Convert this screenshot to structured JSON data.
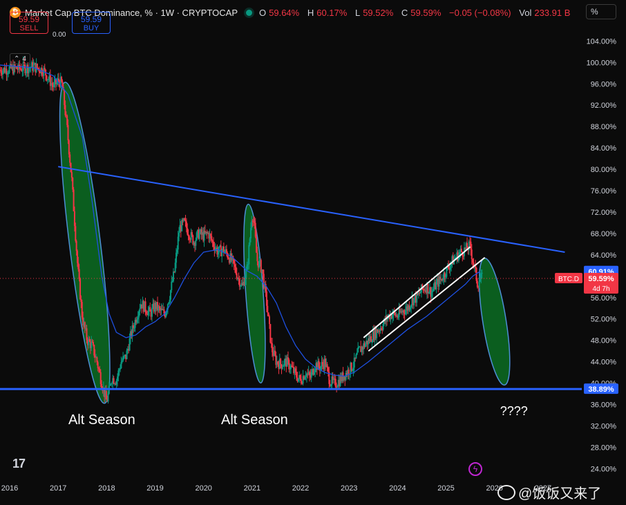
{
  "header": {
    "symbol_icon": "bitcoin-icon",
    "title": "Market Cap BTC Dominance, % · 1W · CRYPTOCAP",
    "ohlc": [
      {
        "k": "O",
        "v": "59.64%"
      },
      {
        "k": "H",
        "v": "60.17%"
      },
      {
        "k": "L",
        "v": "59.52%"
      },
      {
        "k": "C",
        "v": "59.59%"
      },
      {
        "k": "",
        "v": "−0.05 (−0.08%)"
      }
    ],
    "vol_label": "Vol",
    "vol_value": "233.91 B",
    "scale_mode": "%"
  },
  "trade": {
    "sell_price": "59.59",
    "sell_label": "SELL",
    "spread": "0.00",
    "buy_price": "59.59",
    "buy_label": "BUY"
  },
  "layers_count": "4",
  "watermark": "@饭饭又来了",
  "colors": {
    "up": "#089981",
    "down": "#f23645",
    "trendline": "#2962ff",
    "ema": "#1e50e0",
    "ellipse_fill": "#0b5e1f"
  },
  "chart_data": {
    "type": "line",
    "y_scale": "linear",
    "ylim": [
      22.5,
      106.5
    ],
    "y_ticks": [
      "104.00%",
      "100.00%",
      "96.00%",
      "92.00%",
      "88.00%",
      "84.00%",
      "80.00%",
      "76.00%",
      "72.00%",
      "68.00%",
      "64.00%",
      "60.00%",
      "56.00%",
      "52.00%",
      "48.00%",
      "44.00%",
      "40.00%",
      "36.00%",
      "32.00%",
      "28.00%",
      "24.00%"
    ],
    "x_ticks": [
      "2016",
      "2017",
      "2018",
      "2019",
      "2020",
      "2021",
      "2022",
      "2023",
      "2024",
      "2025",
      "2026",
      "2027"
    ],
    "xlim": [
      2015.8,
      2027.8
    ],
    "series": [
      {
        "x": [
          2015.8,
          2016.2,
          2016.5,
          2016.7,
          2016.9,
          2017.0,
          2017.08,
          2017.18,
          2017.28,
          2017.4,
          2017.5,
          2017.6,
          2017.7,
          2017.8,
          2017.9,
          2018.0,
          2018.05,
          2018.1,
          2018.2,
          2018.3,
          2018.4,
          2018.5,
          2018.6,
          2018.7,
          2018.8,
          2018.9,
          2019.0,
          2019.1,
          2019.2,
          2019.3,
          2019.4,
          2019.5,
          2019.6,
          2019.7,
          2019.8,
          2019.9,
          2020.0,
          2020.1,
          2020.2,
          2020.3,
          2020.4,
          2020.5,
          2020.6,
          2020.7,
          2020.8,
          2020.9,
          2021.0,
          2021.05,
          2021.1,
          2021.2,
          2021.3,
          2021.4,
          2021.5,
          2021.6,
          2021.7,
          2021.8,
          2021.9,
          2022.0,
          2022.1,
          2022.2,
          2022.3,
          2022.4,
          2022.5,
          2022.6,
          2022.7,
          2022.8,
          2022.9,
          2023.0,
          2023.1,
          2023.2,
          2023.3,
          2023.4,
          2023.5,
          2023.6,
          2023.7,
          2023.8,
          2023.9,
          2024.0,
          2024.1,
          2024.2,
          2024.3,
          2024.4,
          2024.5,
          2024.6,
          2024.7,
          2024.8,
          2024.9,
          2025.0,
          2025.1,
          2025.2,
          2025.3,
          2025.4,
          2025.5,
          2025.55,
          2025.6,
          2025.65,
          2025.7,
          2025.75
        ],
        "y": [
          98.6,
          98.9,
          99.2,
          98.5,
          95.5,
          96.5,
          96.0,
          88.0,
          78.0,
          62.0,
          52.0,
          48.0,
          47.0,
          44.0,
          40.0,
          36.5,
          38.5,
          41.0,
          40.5,
          44.0,
          45.0,
          49.0,
          52.0,
          55.0,
          54.0,
          53.0,
          54.5,
          53.5,
          53.0,
          56.5,
          61.0,
          69.0,
          70.0,
          68.0,
          66.5,
          68.0,
          67.5,
          68.0,
          66.0,
          64.5,
          65.0,
          64.0,
          62.5,
          60.0,
          58.0,
          61.5,
          72.0,
          69.0,
          63.0,
          61.5,
          55.0,
          46.5,
          44.0,
          43.5,
          44.0,
          43.0,
          41.5,
          40.5,
          42.0,
          41.0,
          43.5,
          43.0,
          44.0,
          40.5,
          39.8,
          40.5,
          41.5,
          42.5,
          43.5,
          46.0,
          47.0,
          48.0,
          49.0,
          50.0,
          51.0,
          52.5,
          53.0,
          52.5,
          53.5,
          54.0,
          55.5,
          56.0,
          57.5,
          58.0,
          57.0,
          58.5,
          59.5,
          61.0,
          62.5,
          63.5,
          64.5,
          65.0,
          65.7,
          63.0,
          61.0,
          58.5,
          59.5,
          59.59
        ]
      }
    ],
    "ema": {
      "x": [
        2015.8,
        2016.5,
        2016.9,
        2017.2,
        2017.5,
        2017.7,
        2017.9,
        2018.05,
        2018.2,
        2018.4,
        2018.6,
        2018.8,
        2019.0,
        2019.2,
        2019.4,
        2019.6,
        2019.8,
        2020.0,
        2020.3,
        2020.6,
        2020.9,
        2021.1,
        2021.3,
        2021.5,
        2021.7,
        2021.9,
        2022.1,
        2022.3,
        2022.5,
        2022.7,
        2022.9,
        2023.1,
        2023.4,
        2023.8,
        2024.2,
        2024.6,
        2025.0,
        2025.4,
        2025.55,
        2025.7
      ],
      "y": [
        99.5,
        99.0,
        97.5,
        94.0,
        86.0,
        74.0,
        60.0,
        53.0,
        49.5,
        48.5,
        49.0,
        50.5,
        51.5,
        53.0,
        56.0,
        59.5,
        62.5,
        64.5,
        65.0,
        63.5,
        61.0,
        60.0,
        58.0,
        55.0,
        50.5,
        47.0,
        44.5,
        43.0,
        42.0,
        41.5,
        41.3,
        42.0,
        44.0,
        47.0,
        50.0,
        52.5,
        55.5,
        58.5,
        60.0,
        60.91
      ]
    },
    "trendline": {
      "x": [
        2017.0,
        2027.45
      ],
      "y": [
        80.5,
        64.5
      ]
    },
    "support": {
      "y": 38.89
    },
    "channel": [
      {
        "x": [
          2023.3,
          2025.5
        ],
        "y": [
          48.5,
          65.5
        ]
      },
      {
        "x": [
          2023.4,
          2025.8
        ],
        "y": [
          46.0,
          63.5
        ]
      }
    ],
    "ellipses": [
      {
        "cx": 2017.55,
        "rx": 0.32,
        "y_top": 96.5,
        "y_bot": 36.0,
        "rot": -7
      },
      {
        "cx": 2021.05,
        "rx": 0.18,
        "y_top": 73.5,
        "y_bot": 40.0,
        "rot": -4
      },
      {
        "cx": 2026.0,
        "rx": 0.24,
        "y_top": 63.5,
        "y_bot": 39.5,
        "rot": -9
      }
    ],
    "price_labels": [
      {
        "text": "60.91%",
        "y": 60.91,
        "color": "#2962ff"
      },
      {
        "text": "59.59%",
        "y": 59.59,
        "color": "#f23645",
        "tag": "BTC.D",
        "sub": "4d 7h"
      },
      {
        "text": "38.89%",
        "y": 38.89,
        "color": "#2962ff"
      }
    ],
    "annotations": [
      {
        "text": "Alt Season",
        "x": 2017.9,
        "y": 32.3
      },
      {
        "text": "Alt Season",
        "x": 2021.05,
        "y": 32.3
      },
      {
        "text": "????",
        "x": 2026.4,
        "y": 34.0
      }
    ]
  }
}
